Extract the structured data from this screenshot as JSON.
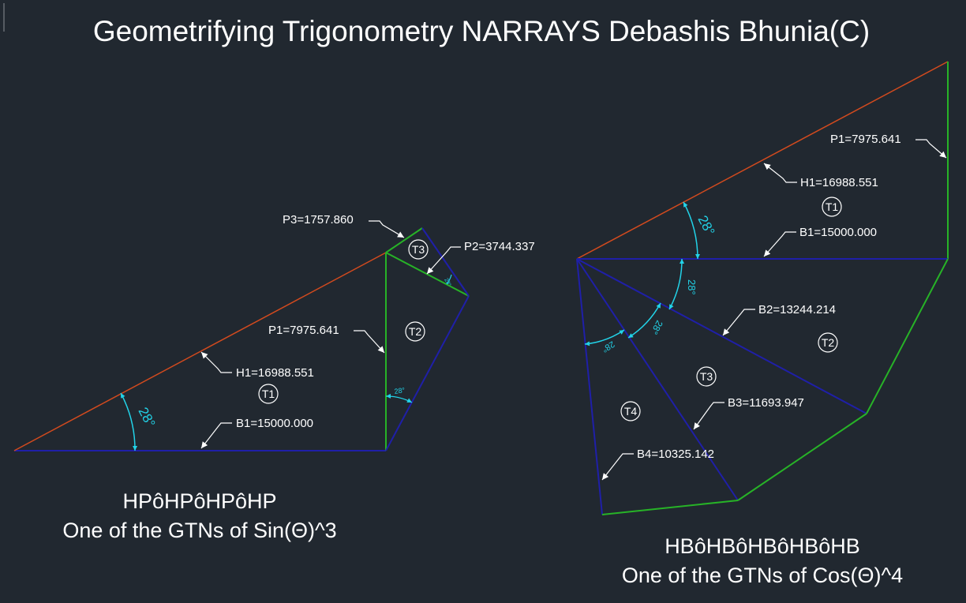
{
  "title": "Geometrifying Trigonometry NARRAYS Debashis Bhunia(C)",
  "colors": {
    "background": "#212830",
    "hypotenuse": "#d24a1e",
    "base": "#1f1fa8",
    "perpendicular": "#27b327",
    "dimension": "#ffffff",
    "angle": "#22d3e8"
  },
  "left_figure": {
    "angle_label": "28°",
    "dimensions": {
      "p3": "P3=1757.860",
      "p2": "P2=3744.337",
      "p1": "P1=7975.641",
      "h1": "H1=16988.551",
      "b1": "B1=15000.000"
    },
    "triangles": {
      "t1": "T1",
      "t2": "T2",
      "t3": "T3"
    },
    "caption_line1": "HPôHPôHPôHP",
    "caption_line2": "One of the GTNs of Sin(Θ)^3"
  },
  "right_figure": {
    "angle_label": "28°",
    "dimensions": {
      "p1": "P1=7975.641",
      "h1": "H1=16988.551",
      "b1": "B1=15000.000",
      "b2": "B2=13244.214",
      "b3": "B3=11693.947",
      "b4": "B4=10325.142"
    },
    "triangles": {
      "t1": "T1",
      "t2": "T2",
      "t3": "T3",
      "t4": "T4"
    },
    "caption_line1": "HBôHBôHBôHBôHB",
    "caption_line2": "One of the GTNs of Cos(Θ)^4"
  }
}
